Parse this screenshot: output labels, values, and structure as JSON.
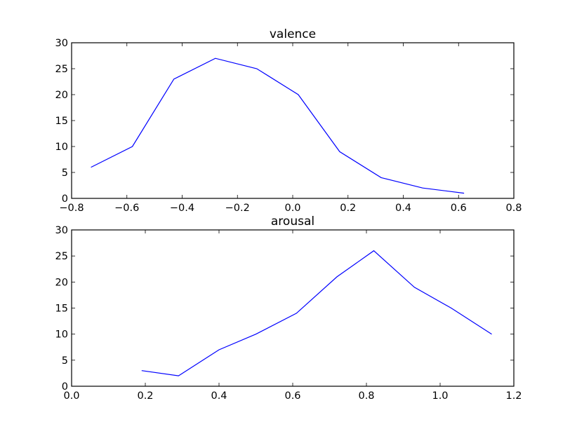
{
  "chart_data": [
    {
      "type": "line",
      "title": "valence",
      "xlabel": "",
      "ylabel": "",
      "xlim": [
        -0.8,
        0.8
      ],
      "ylim": [
        0,
        30
      ],
      "grid": false,
      "legend": null,
      "x_ticks": [
        "−0.8",
        "−0.6",
        "−0.4",
        "−0.2",
        "0.0",
        "0.2",
        "0.4",
        "0.6",
        "0.8"
      ],
      "x_tick_values": [
        -0.8,
        -0.6,
        -0.4,
        -0.2,
        0.0,
        0.2,
        0.4,
        0.6,
        0.8
      ],
      "y_ticks": [
        "0",
        "5",
        "10",
        "15",
        "20",
        "25",
        "30"
      ],
      "y_tick_values": [
        0,
        5,
        10,
        15,
        20,
        25,
        30
      ],
      "series": [
        {
          "name": "valence",
          "color": "#0000ff",
          "x": [
            -0.73,
            -0.58,
            -0.43,
            -0.28,
            -0.13,
            0.02,
            0.17,
            0.32,
            0.47,
            0.62
          ],
          "values": [
            6,
            10,
            23,
            27,
            25,
            20,
            9,
            4,
            2,
            1
          ]
        }
      ]
    },
    {
      "type": "line",
      "title": "arousal",
      "xlabel": "",
      "ylabel": "",
      "xlim": [
        0.0,
        1.2
      ],
      "ylim": [
        0,
        30
      ],
      "grid": false,
      "legend": null,
      "x_ticks": [
        "0.0",
        "0.2",
        "0.4",
        "0.6",
        "0.8",
        "1.0",
        "1.2"
      ],
      "x_tick_values": [
        0.0,
        0.2,
        0.4,
        0.6,
        0.8,
        1.0,
        1.2
      ],
      "y_ticks": [
        "0",
        "5",
        "10",
        "15",
        "20",
        "25",
        "30"
      ],
      "y_tick_values": [
        0,
        5,
        10,
        15,
        20,
        25,
        30
      ],
      "series": [
        {
          "name": "arousal",
          "color": "#0000ff",
          "x": [
            0.19,
            0.29,
            0.4,
            0.5,
            0.61,
            0.72,
            0.82,
            0.93,
            1.03,
            1.14
          ],
          "values": [
            3,
            2,
            7,
            10,
            14,
            21,
            26,
            19,
            15,
            10
          ]
        }
      ]
    }
  ]
}
